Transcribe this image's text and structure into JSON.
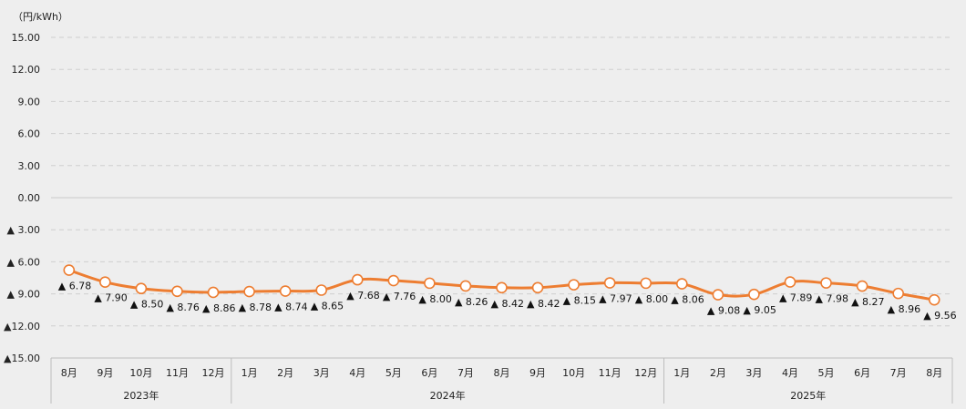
{
  "chart_data": {
    "type": "line",
    "ylabel": "（円/kWh）",
    "ylim": [
      -15,
      15
    ],
    "yticks": [
      "15.00",
      "12.00",
      "9.00",
      "6.00",
      "3.00",
      "0.00",
      "▲ 3.00",
      "▲ 6.00",
      "▲ 9.00",
      "▲12.00",
      "▲15.00"
    ],
    "categories": [
      "8月",
      "9月",
      "10月",
      "11月",
      "12月",
      "1月",
      "2月",
      "3月",
      "4月",
      "5月",
      "6月",
      "7月",
      "8月",
      "9月",
      "10月",
      "11月",
      "12月",
      "1月",
      "2月",
      "3月",
      "4月",
      "5月",
      "6月",
      "7月",
      "8月"
    ],
    "year_groups": [
      {
        "label": "2023年",
        "count": 5
      },
      {
        "label": "2024年",
        "count": 12
      },
      {
        "label": "2025年",
        "count": 8
      }
    ],
    "series": [
      {
        "values": [
          -6.78,
          -7.9,
          -8.5,
          -8.76,
          -8.86,
          -8.78,
          -8.74,
          -8.65,
          -7.68,
          -7.76,
          -8.0,
          -8.26,
          -8.42,
          -8.42,
          -8.15,
          -7.97,
          -8.0,
          -8.06,
          -9.08,
          -9.05,
          -7.89,
          -7.98,
          -8.27,
          -8.96,
          -9.56
        ],
        "labels": [
          "▲ 6.78",
          "▲ 7.90",
          "▲ 8.50",
          "▲ 8.76",
          "▲ 8.86",
          "▲ 8.78",
          "▲ 8.74",
          "▲ 8.65",
          "▲ 7.68",
          "▲ 7.76",
          "▲ 8.00",
          "▲ 8.26",
          "▲ 8.42",
          "▲ 8.42",
          "▲ 8.15",
          "▲ 7.97",
          "▲ 8.00",
          "▲ 8.06",
          "▲ 9.08",
          "▲ 9.05",
          "▲ 7.89",
          "▲ 7.98",
          "▲ 8.27",
          "▲ 8.96",
          "▲ 9.56"
        ],
        "color": "#ed7d31"
      }
    ],
    "grid": true
  }
}
